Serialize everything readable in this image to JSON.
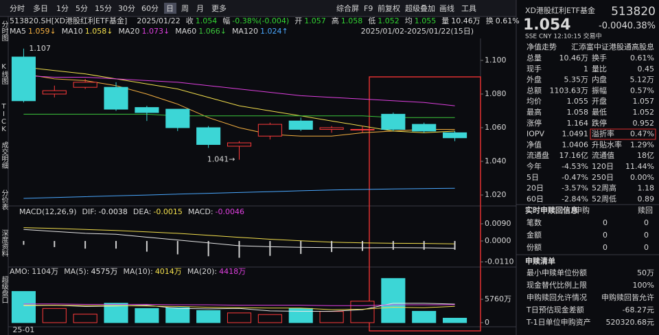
{
  "toolbar": {
    "tabs": [
      "分时",
      "多日",
      "1分",
      "5分",
      "15分",
      "30分",
      "60分",
      "日",
      "周",
      "月",
      "更多"
    ],
    "selected_tab": 7,
    "tools": [
      "综合屏",
      "F9",
      "前复权",
      "超级叠加",
      "画线",
      "工具"
    ]
  },
  "sidebar": [
    "分时图",
    "K线图",
    "TICK",
    "成交明细",
    "分价表",
    "深度资料",
    "超级盘口"
  ],
  "info_line": {
    "code": "513820.SH[XD港股红利ETF基金]",
    "date": "2025/01/22",
    "fields": [
      {
        "k": "收",
        "v": "1.054",
        "color": "#33d633"
      },
      {
        "k": "幅",
        "v": "-0.38%(-0.004)",
        "color": "#33d633"
      },
      {
        "k": "开",
        "v": "1.057",
        "color": "#33d633"
      },
      {
        "k": "高",
        "v": "1.058",
        "color": "#33d633"
      },
      {
        "k": "低",
        "v": "1.052",
        "color": "#33d633"
      },
      {
        "k": "均",
        "v": "1.055",
        "color": "#33d633"
      },
      {
        "k": "量",
        "v": "10.46万",
        "color": "#e0e0e0"
      },
      {
        "k": "换",
        "v": "0.61%",
        "color": "#e0e0e0"
      }
    ]
  },
  "date_range": "2025/01/02-2025/01/22(15日)",
  "chart_data": [
    {
      "type": "candlestick",
      "up_color": "#ff3b3b",
      "down_color": "#3cd6d6",
      "open": [
        1.102,
        1.08,
        1.084,
        1.084,
        1.072,
        1.071,
        1.06,
        1.049,
        1.055,
        1.064,
        1.059,
        1.059,
        1.068,
        1.062,
        1.057
      ],
      "high": [
        1.107,
        1.085,
        1.089,
        1.087,
        1.073,
        1.071,
        1.061,
        1.052,
        1.063,
        1.066,
        1.061,
        1.061,
        1.069,
        1.063,
        1.058
      ],
      "low": [
        1.075,
        1.078,
        1.083,
        1.07,
        1.064,
        1.058,
        1.048,
        1.041,
        1.053,
        1.058,
        1.057,
        1.057,
        1.058,
        1.057,
        1.052
      ],
      "close": [
        1.076,
        1.082,
        1.087,
        1.071,
        1.069,
        1.06,
        1.05,
        1.051,
        1.062,
        1.059,
        1.06,
        1.059,
        1.059,
        1.058,
        1.054
      ],
      "series": [
        {
          "name": "MA5",
          "label": "1.059↓",
          "color": "#f5b041",
          "values": [
            1.092,
            1.089,
            1.088,
            1.085,
            1.08,
            1.074,
            1.066,
            1.06,
            1.056,
            1.055,
            1.055,
            1.057,
            1.058,
            1.059,
            1.059
          ]
        },
        {
          "name": "MA10",
          "label": "1.058↓",
          "color": "#f4e04d",
          "values": [
            1.096,
            1.094,
            1.092,
            1.089,
            1.086,
            1.083,
            1.078,
            1.073,
            1.07,
            1.067,
            1.064,
            1.061,
            1.058,
            1.057,
            1.058
          ]
        },
        {
          "name": "MA20",
          "label": "1.073↓",
          "color": "#e040e0",
          "values": [
            1.091,
            1.09,
            1.09,
            1.089,
            1.088,
            1.087,
            1.085,
            1.083,
            1.081,
            1.079,
            1.078,
            1.077,
            1.076,
            1.075,
            1.073
          ]
        },
        {
          "name": "MA60",
          "label": "1.066↓",
          "color": "#3cc83c",
          "values": [
            1.068,
            1.068,
            1.068,
            1.068,
            1.068,
            1.067,
            1.067,
            1.067,
            1.067,
            1.067,
            1.067,
            1.067,
            1.066,
            1.066,
            1.066
          ]
        },
        {
          "name": "MA120",
          "label": "1.024↑",
          "color": "#4aa8ff",
          "values": [
            1.018,
            1.0185,
            1.019,
            1.0195,
            1.02,
            1.0205,
            1.021,
            1.0215,
            1.022,
            1.0225,
            1.023,
            1.0233,
            1.0236,
            1.0238,
            1.024
          ]
        }
      ],
      "annotations": {
        "high": "1.107",
        "low": "1.041→"
      },
      "ylim": [
        1.0135,
        1.1114
      ],
      "yticks": [
        {
          "value": 1.1,
          "label": "1.100"
        },
        {
          "value": 1.08,
          "label": "1.080"
        },
        {
          "value": 1.06,
          "label": "1.060"
        },
        {
          "value": 1.04,
          "label": "1.040"
        },
        {
          "value": 1.02,
          "label": "1.020"
        }
      ]
    },
    {
      "type": "macd",
      "title": "MACD(12,26,9)",
      "series": [
        {
          "name": "DIF:",
          "label": "-0.0038",
          "color": "#e8e8e8",
          "values": [
            0.006,
            0.005,
            0.004,
            0.0035,
            0.002,
            0.0005,
            -0.001,
            -0.0025,
            -0.003,
            -0.0033,
            -0.0035,
            -0.0036,
            -0.0035,
            -0.0036,
            -0.0038
          ]
        },
        {
          "name": "DEA:",
          "label": "-0.0015",
          "color": "#f4e04d",
          "values": [
            0.007,
            0.0066,
            0.006,
            0.0055,
            0.0048,
            0.004,
            0.003,
            0.0019,
            0.0009,
            0.0001,
            -0.0006,
            -0.001,
            -0.0012,
            -0.0013,
            -0.0015
          ]
        },
        {
          "name": "MACD:",
          "label": "-0.0046",
          "color": "#d0d0d0",
          "label_color": "#e040e0",
          "values": [
            -0.002,
            -0.0032,
            -0.004,
            -0.004,
            -0.0056,
            -0.007,
            -0.008,
            -0.0088,
            -0.0078,
            -0.0068,
            -0.0058,
            -0.0052,
            -0.0046,
            -0.0046,
            -0.0046
          ]
        }
      ],
      "ylim": [
        -0.0133,
        0.0126
      ],
      "yticks": [
        {
          "value": 0.009,
          "label": "0.0090"
        },
        {
          "value": 0,
          "label": "0.0000"
        },
        {
          "value": -0.011,
          "label": "-0.0110"
        }
      ]
    },
    {
      "type": "volume",
      "title": "AMO:",
      "label": "1104万",
      "categories": [
        "25-01",
        null,
        null,
        null,
        null,
        null,
        null,
        null,
        null,
        null,
        null,
        null,
        null,
        null,
        null
      ],
      "values": [
        7700,
        3500,
        2100,
        4800,
        3500,
        3700,
        3000,
        2400,
        2000,
        3500,
        2770,
        5300,
        10900,
        2800,
        1104
      ],
      "series": [
        {
          "name": "MA(5):",
          "label": "4575万",
          "color": "#e8e8e8",
          "values": [
            4200,
            4300,
            4000,
            4100,
            4300,
            3500,
            3400,
            3500,
            2900,
            2800,
            2800,
            3200,
            4800,
            4800,
            4575
          ]
        },
        {
          "name": "MA(10):",
          "label": "4014万",
          "color": "#f4e04d",
          "values": [
            4300,
            4300,
            4200,
            4200,
            4100,
            4000,
            3800,
            3700,
            3600,
            3600,
            3200,
            3300,
            3800,
            3700,
            4014
          ]
        },
        {
          "name": "MA(20):",
          "label": "4418万",
          "color": "#e040e0",
          "values": [
            4600,
            4600,
            4500,
            4500,
            4500,
            4400,
            4400,
            4300,
            4300,
            4300,
            4200,
            4200,
            4400,
            4400,
            4418
          ]
        }
      ],
      "ylim": [
        0,
        11860
      ],
      "yticks": [
        {
          "value": 5760,
          "label": "5760万"
        },
        0
      ]
    }
  ],
  "quote": {
    "name": "XD港股红利ETF基金",
    "code": "513820",
    "price": "1.054",
    "change": "-0.004",
    "pct": "-0.38%",
    "meta": "SSE  CNY  12:10:15  交易中",
    "nav_trend": [
      "净值走势",
      "汇添富中证港股通高股息"
    ],
    "rows": [
      [
        "总量",
        "10.46万",
        "#e0e0e0",
        "换手",
        "0.61%",
        "#e0e0e0"
      ],
      [
        "现手",
        "1",
        "#e0e0e0",
        "量比",
        "0.45",
        "#e0e0e0"
      ],
      [
        "外盘",
        "5.35万",
        "#ff4444",
        "内盘",
        "5.12万",
        "#33d633"
      ],
      [
        "总额",
        "1103.63万",
        "#e0e0e0",
        "振幅",
        "0.57%",
        "#e0e0e0"
      ],
      [
        "均价",
        "1.055",
        "#33d633",
        "开盘",
        "1.057",
        "#33d633"
      ],
      [
        "最高",
        "1.058",
        "#33d633",
        "最低",
        "1.052",
        "#33d633"
      ],
      [
        "涨停",
        "1.164",
        "#ff4444",
        "跌停",
        "0.952",
        "#33d633"
      ],
      [
        "IOPV",
        "1.0491",
        "#e0e0e0",
        "溢折率",
        "0.47%",
        "#ff4444"
      ],
      [
        "净值",
        "1.0406",
        "#ff4444",
        "升贴水率",
        "1.29%",
        "#ff4444"
      ],
      [
        "流通盘",
        "17.16亿",
        "#e0e0e0",
        "流通值",
        "18亿",
        "#e0e0e0"
      ],
      [
        "今年",
        "-4.53%",
        "#33d633",
        "120日",
        "11.44%",
        "#ff4444"
      ],
      [
        "5日",
        "-0.47%",
        "#33d633",
        "250日",
        "0.00%",
        "#e0e0e0"
      ],
      [
        "20日",
        "-3.57%",
        "#33d633",
        "52周高",
        "1.18",
        "#e0e0e0"
      ],
      [
        "60日",
        "-2.84%",
        "#33d633",
        "52周低",
        "0.89",
        "#e0e0e0"
      ]
    ],
    "subscription": {
      "title": "实时申赎回信息",
      "cols": [
        "申购",
        "赎回"
      ],
      "rows": [
        [
          "笔数",
          "0",
          "0"
        ],
        [
          "金额",
          "0",
          "0"
        ],
        [
          "份额",
          "0",
          "0"
        ]
      ]
    },
    "list": {
      "title": "申赎清单",
      "rows": [
        [
          "最小申赎单位份额",
          "50万"
        ],
        [
          "现金替代比例上限",
          "100%"
        ],
        [
          "申购赎回允许情况",
          "申购赎回皆允许"
        ],
        [
          "T日预估现金差额",
          "-68.27元"
        ],
        [
          "T-1日单位申购资产",
          "520320.68元"
        ]
      ]
    }
  }
}
